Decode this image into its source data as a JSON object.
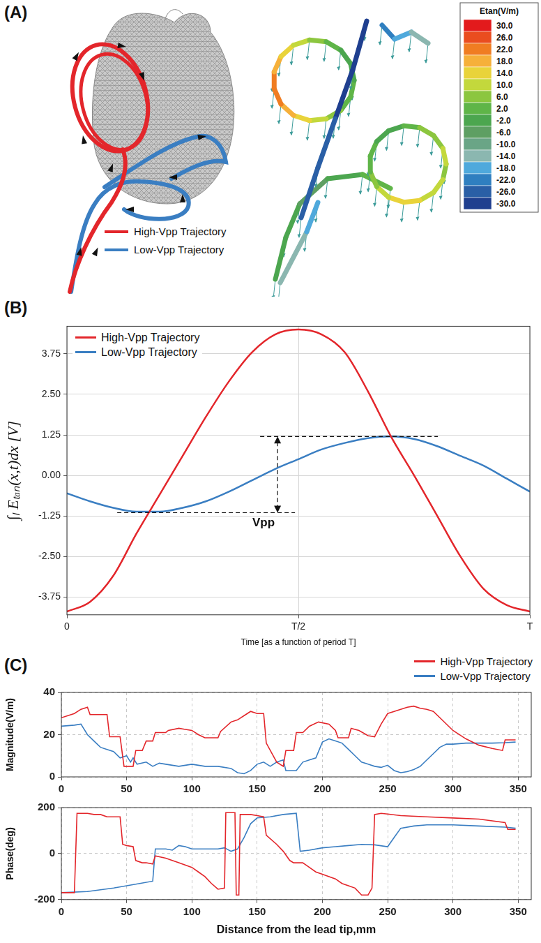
{
  "panel_a": {
    "panel": "(A)",
    "legend": [
      {
        "name": "High-Vpp Trajectory",
        "color": "#e3262b"
      },
      {
        "name": "Low-Vpp Trajectory",
        "color": "#3a7ec2"
      }
    ],
    "colorbar": {
      "title": "Etan(V/m)",
      "range": [
        -30,
        30
      ],
      "ticks": [
        {
          "value": 30,
          "label": "30.0"
        },
        {
          "value": 26,
          "label": "26.0"
        },
        {
          "value": 22,
          "label": "22.0"
        },
        {
          "value": 18,
          "label": "18.0"
        },
        {
          "value": 14,
          "label": "14.0"
        },
        {
          "value": 10,
          "label": "10.0"
        },
        {
          "value": 6,
          "label": "6.0"
        },
        {
          "value": 2,
          "label": "2.0"
        },
        {
          "value": -2,
          "label": "-2.0"
        },
        {
          "value": -6,
          "label": "-6.0"
        },
        {
          "value": -10,
          "label": "-10.0"
        },
        {
          "value": -14,
          "label": "-14.0"
        },
        {
          "value": -18,
          "label": "-18.0"
        },
        {
          "value": -22,
          "label": "-22.0"
        },
        {
          "value": -26,
          "label": "-26.0"
        },
        {
          "value": -30,
          "label": "-30.0"
        }
      ]
    }
  },
  "chart_data": [
    {
      "type": "line",
      "panel": "(B)",
      "x_label": "Time [as a function of period T]",
      "y_label": "∫ₗ Eₜₐₙ(x,t)dx [V]",
      "x": [
        0,
        0.05,
        0.1,
        0.15,
        0.2,
        0.25,
        0.3,
        0.35,
        0.4,
        0.45,
        0.5,
        0.55,
        0.6,
        0.65,
        0.7,
        0.75,
        0.8,
        0.85,
        0.9,
        0.95,
        1
      ],
      "series": [
        {
          "name": "High-Vpp Trajectory",
          "color": "#e3262b",
          "values": [
            -4.2,
            -3.9,
            -3.1,
            -1.8,
            -0.6,
            0.6,
            1.8,
            2.9,
            3.8,
            4.35,
            4.5,
            4.35,
            3.8,
            2.6,
            1.2,
            0.0,
            -1.25,
            -2.5,
            -3.5,
            -4.0,
            -4.2
          ]
        },
        {
          "name": "Low-Vpp Trajectory",
          "color": "#3a7ec2",
          "values": [
            -0.55,
            -0.8,
            -1.0,
            -1.12,
            -1.12,
            -1.0,
            -0.8,
            -0.5,
            -0.15,
            0.2,
            0.5,
            0.8,
            1.0,
            1.15,
            1.2,
            1.12,
            0.9,
            0.6,
            0.3,
            -0.1,
            -0.5
          ]
        }
      ],
      "xlim": [
        0,
        1
      ],
      "xticks": [
        0,
        {
          "value": 0.5,
          "label": "T/2"
        },
        {
          "value": 1,
          "label": "T"
        }
      ],
      "ylim": [
        -4.3,
        4.6
      ],
      "yticks": [
        3.75,
        {
          "value": 2.5,
          "label": "2.50"
        },
        1.25,
        {
          "value": 0,
          "label": "0.00"
        },
        -1.25,
        {
          "value": -2.5,
          "label": "-2.50"
        },
        -3.75
      ],
      "grid": true,
      "legend": "upper left",
      "annotations": [
        {
          "text": "Vpp",
          "x": 0.455,
          "y_from": -1.15,
          "y_to": 1.2
        }
      ]
    },
    {
      "type": "line",
      "panel": "(C)",
      "y_label": "Magnitude(V/m)",
      "series": [
        {
          "name": "High-Vpp Trajectory",
          "color": "#e3262b",
          "x": [
            0,
            10,
            15,
            20,
            22,
            30,
            35,
            37,
            45,
            48,
            55,
            57,
            62,
            65,
            70,
            72,
            80,
            82,
            90,
            95,
            100,
            105,
            110,
            115,
            120,
            122,
            130,
            135,
            140,
            145,
            150,
            155,
            157,
            165,
            170,
            172,
            178,
            180,
            185,
            190,
            197,
            205,
            210,
            212,
            220,
            222,
            228,
            235,
            240,
            245,
            250,
            255,
            260,
            265,
            270,
            275,
            280,
            285,
            290,
            300,
            310,
            320,
            330,
            338,
            340,
            348
          ],
          "values": [
            28,
            30,
            32,
            33,
            29.5,
            29.5,
            29.5,
            19,
            19,
            5,
            5,
            12.5,
            12.5,
            17,
            17,
            21,
            21,
            22,
            23,
            22.5,
            22,
            20,
            18.5,
            18.5,
            18.5,
            21.5,
            26,
            27,
            29,
            31,
            30,
            30,
            16,
            7,
            5,
            12.5,
            12.5,
            21,
            21,
            24,
            26,
            25,
            22,
            18.5,
            18.5,
            23,
            22,
            19.5,
            19,
            25,
            30,
            31,
            32,
            33,
            33.5,
            32.5,
            32,
            31,
            28,
            22,
            18,
            15,
            13.5,
            12.5,
            17.5,
            17.5
          ]
        },
        {
          "name": "Low-Vpp Trajectory",
          "color": "#3a7ec2",
          "x": [
            0,
            10,
            15,
            20,
            25,
            30,
            35,
            40,
            45,
            50,
            53,
            55,
            58,
            65,
            70,
            75,
            80,
            90,
            100,
            110,
            120,
            130,
            135,
            140,
            145,
            150,
            155,
            160,
            165,
            170,
            172,
            180,
            185,
            190,
            195,
            200,
            205,
            210,
            215,
            220,
            225,
            230,
            235,
            240,
            245,
            250,
            255,
            260,
            265,
            270,
            275,
            280,
            285,
            290,
            295,
            300,
            310,
            320,
            330,
            340,
            348
          ],
          "values": [
            24,
            24.5,
            25,
            20,
            17,
            14,
            13,
            12,
            9,
            10,
            7,
            9,
            6,
            7,
            5,
            6.5,
            6,
            5,
            6,
            5,
            5,
            4,
            2,
            1.5,
            3,
            6,
            7,
            5,
            7,
            8,
            3,
            3,
            7,
            8,
            9,
            16.5,
            18,
            17,
            16,
            13,
            10,
            7,
            6,
            5,
            4.5,
            5.5,
            3,
            2,
            2.5,
            3.5,
            5,
            8,
            11,
            14,
            15.5,
            15.5,
            16,
            16,
            16,
            16.2,
            16.5
          ]
        }
      ],
      "xlim": [
        0,
        360
      ],
      "xticks": [
        0,
        50,
        100,
        150,
        200,
        250,
        300,
        350
      ],
      "ylim": [
        0,
        40
      ],
      "yticks": [
        0,
        20,
        40
      ],
      "grid": true,
      "legend": "upper right"
    },
    {
      "type": "line",
      "x_label": "Distance from the lead tip,mm",
      "y_label": "Phase(deg)",
      "series": [
        {
          "name": "High-Vpp Trajectory",
          "color": "#e3262b",
          "x": [
            0,
            10,
            12,
            20,
            25,
            30,
            35,
            45,
            47,
            50,
            55,
            57,
            62,
            65,
            70,
            72,
            80,
            90,
            100,
            105,
            110,
            115,
            120,
            125,
            126,
            133,
            134,
            136,
            137,
            145,
            150,
            155,
            157,
            165,
            170,
            175,
            178,
            185,
            190,
            195,
            200,
            210,
            215,
            220,
            225,
            230,
            235,
            238,
            240,
            245,
            250,
            260,
            280,
            300,
            320,
            340,
            342,
            348
          ],
          "values": [
            -170,
            -170,
            175,
            175,
            170,
            170,
            160,
            160,
            40,
            35,
            30,
            -30,
            -40,
            -40,
            -45,
            -10,
            -20,
            -40,
            -60,
            -80,
            -100,
            -130,
            -155,
            -150,
            178,
            178,
            -180,
            -180,
            170,
            170,
            165,
            160,
            80,
            40,
            10,
            -30,
            -40,
            -40,
            -60,
            -80,
            -90,
            -110,
            -130,
            -140,
            -150,
            -180,
            -180,
            -150,
            170,
            175,
            172,
            165,
            160,
            155,
            150,
            135,
            105,
            105
          ]
        },
        {
          "name": "Low-Vpp Trajectory",
          "color": "#3a7ec2",
          "x": [
            0,
            20,
            40,
            60,
            70,
            72,
            80,
            85,
            90,
            95,
            100,
            110,
            120,
            125,
            130,
            135,
            140,
            145,
            150,
            160,
            170,
            180,
            183,
            190,
            200,
            210,
            220,
            230,
            240,
            250,
            255,
            260,
            270,
            280,
            300,
            320,
            340,
            348
          ],
          "values": [
            -170,
            -165,
            -150,
            -130,
            -120,
            20,
            20,
            15,
            35,
            30,
            20,
            20,
            20,
            25,
            10,
            20,
            70,
            130,
            155,
            160,
            170,
            175,
            10,
            15,
            25,
            30,
            35,
            40,
            38,
            30,
            70,
            110,
            120,
            125,
            125,
            120,
            115,
            110
          ]
        }
      ],
      "xlim": [
        0,
        360
      ],
      "xticks": [
        0,
        50,
        100,
        150,
        200,
        250,
        300,
        350
      ],
      "ylim": [
        -200,
        200
      ],
      "yticks": [
        -200,
        0,
        200
      ],
      "grid": true
    }
  ]
}
